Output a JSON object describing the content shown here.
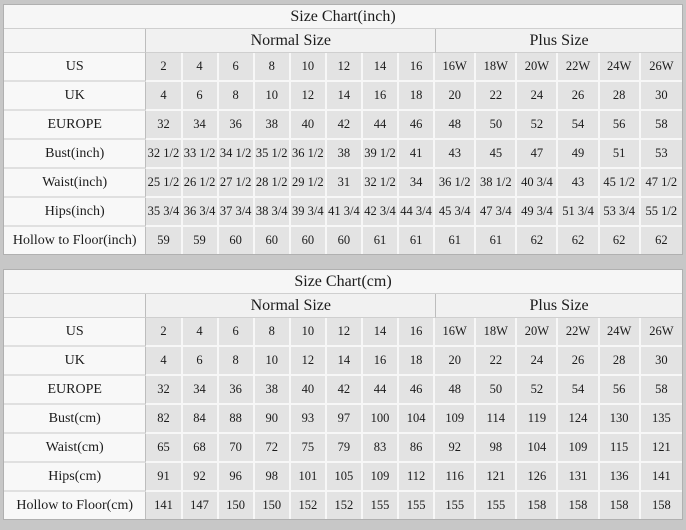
{
  "colors": {
    "page_background": "#c7c7c7",
    "data_cell_background": "#e3e3e3",
    "label_cell_background": "#f8f8f8",
    "header_background": "#f1f1f1",
    "title_background": "#f6f6f6",
    "text": "#1b1b1b"
  },
  "chart_data": [
    {
      "type": "table",
      "title": "Size Chart(inch)",
      "column_groups": [
        {
          "label": "Normal Size",
          "span": 8
        },
        {
          "label": "Plus Size",
          "span": 6
        }
      ],
      "rows": [
        {
          "label": "US",
          "values": [
            "2",
            "4",
            "6",
            "8",
            "10",
            "12",
            "14",
            "16",
            "16W",
            "18W",
            "20W",
            "22W",
            "24W",
            "26W"
          ]
        },
        {
          "label": "UK",
          "values": [
            "4",
            "6",
            "8",
            "10",
            "12",
            "14",
            "16",
            "18",
            "20",
            "22",
            "24",
            "26",
            "28",
            "30"
          ]
        },
        {
          "label": "EUROPE",
          "values": [
            "32",
            "34",
            "36",
            "38",
            "40",
            "42",
            "44",
            "46",
            "48",
            "50",
            "52",
            "54",
            "56",
            "58"
          ]
        },
        {
          "label": "Bust(inch)",
          "values": [
            "32 1/2",
            "33 1/2",
            "34 1/2",
            "35 1/2",
            "36 1/2",
            "38",
            "39 1/2",
            "41",
            "43",
            "45",
            "47",
            "49",
            "51",
            "53"
          ]
        },
        {
          "label": "Waist(inch)",
          "values": [
            "25 1/2",
            "26 1/2",
            "27 1/2",
            "28 1/2",
            "29 1/2",
            "31",
            "32 1/2",
            "34",
            "36 1/2",
            "38 1/2",
            "40 3/4",
            "43",
            "45 1/2",
            "47 1/2"
          ]
        },
        {
          "label": "Hips(inch)",
          "values": [
            "35 3/4",
            "36 3/4",
            "37 3/4",
            "38 3/4",
            "39 3/4",
            "41 3/4",
            "42 3/4",
            "44 3/4",
            "45 3/4",
            "47 3/4",
            "49 3/4",
            "51 3/4",
            "53 3/4",
            "55 1/2"
          ]
        },
        {
          "label": "Hollow to Floor(inch)",
          "values": [
            "59",
            "59",
            "60",
            "60",
            "60",
            "60",
            "61",
            "61",
            "61",
            "61",
            "62",
            "62",
            "62",
            "62"
          ]
        }
      ]
    },
    {
      "type": "table",
      "title": "Size Chart(cm)",
      "column_groups": [
        {
          "label": "Normal Size",
          "span": 8
        },
        {
          "label": "Plus Size",
          "span": 6
        }
      ],
      "rows": [
        {
          "label": "US",
          "values": [
            "2",
            "4",
            "6",
            "8",
            "10",
            "12",
            "14",
            "16",
            "16W",
            "18W",
            "20W",
            "22W",
            "24W",
            "26W"
          ]
        },
        {
          "label": "UK",
          "values": [
            "4",
            "6",
            "8",
            "10",
            "12",
            "14",
            "16",
            "18",
            "20",
            "22",
            "24",
            "26",
            "28",
            "30"
          ]
        },
        {
          "label": "EUROPE",
          "values": [
            "32",
            "34",
            "36",
            "38",
            "40",
            "42",
            "44",
            "46",
            "48",
            "50",
            "52",
            "54",
            "56",
            "58"
          ]
        },
        {
          "label": "Bust(cm)",
          "values": [
            "82",
            "84",
            "88",
            "90",
            "93",
            "97",
            "100",
            "104",
            "109",
            "114",
            "119",
            "124",
            "130",
            "135"
          ]
        },
        {
          "label": "Waist(cm)",
          "values": [
            "65",
            "68",
            "70",
            "72",
            "75",
            "79",
            "83",
            "86",
            "92",
            "98",
            "104",
            "109",
            "115",
            "121"
          ]
        },
        {
          "label": "Hips(cm)",
          "values": [
            "91",
            "92",
            "96",
            "98",
            "101",
            "105",
            "109",
            "112",
            "116",
            "121",
            "126",
            "131",
            "136",
            "141"
          ]
        },
        {
          "label": "Hollow to Floor(cm)",
          "values": [
            "141",
            "147",
            "150",
            "150",
            "152",
            "152",
            "155",
            "155",
            "155",
            "155",
            "158",
            "158",
            "158",
            "158"
          ]
        }
      ]
    }
  ]
}
